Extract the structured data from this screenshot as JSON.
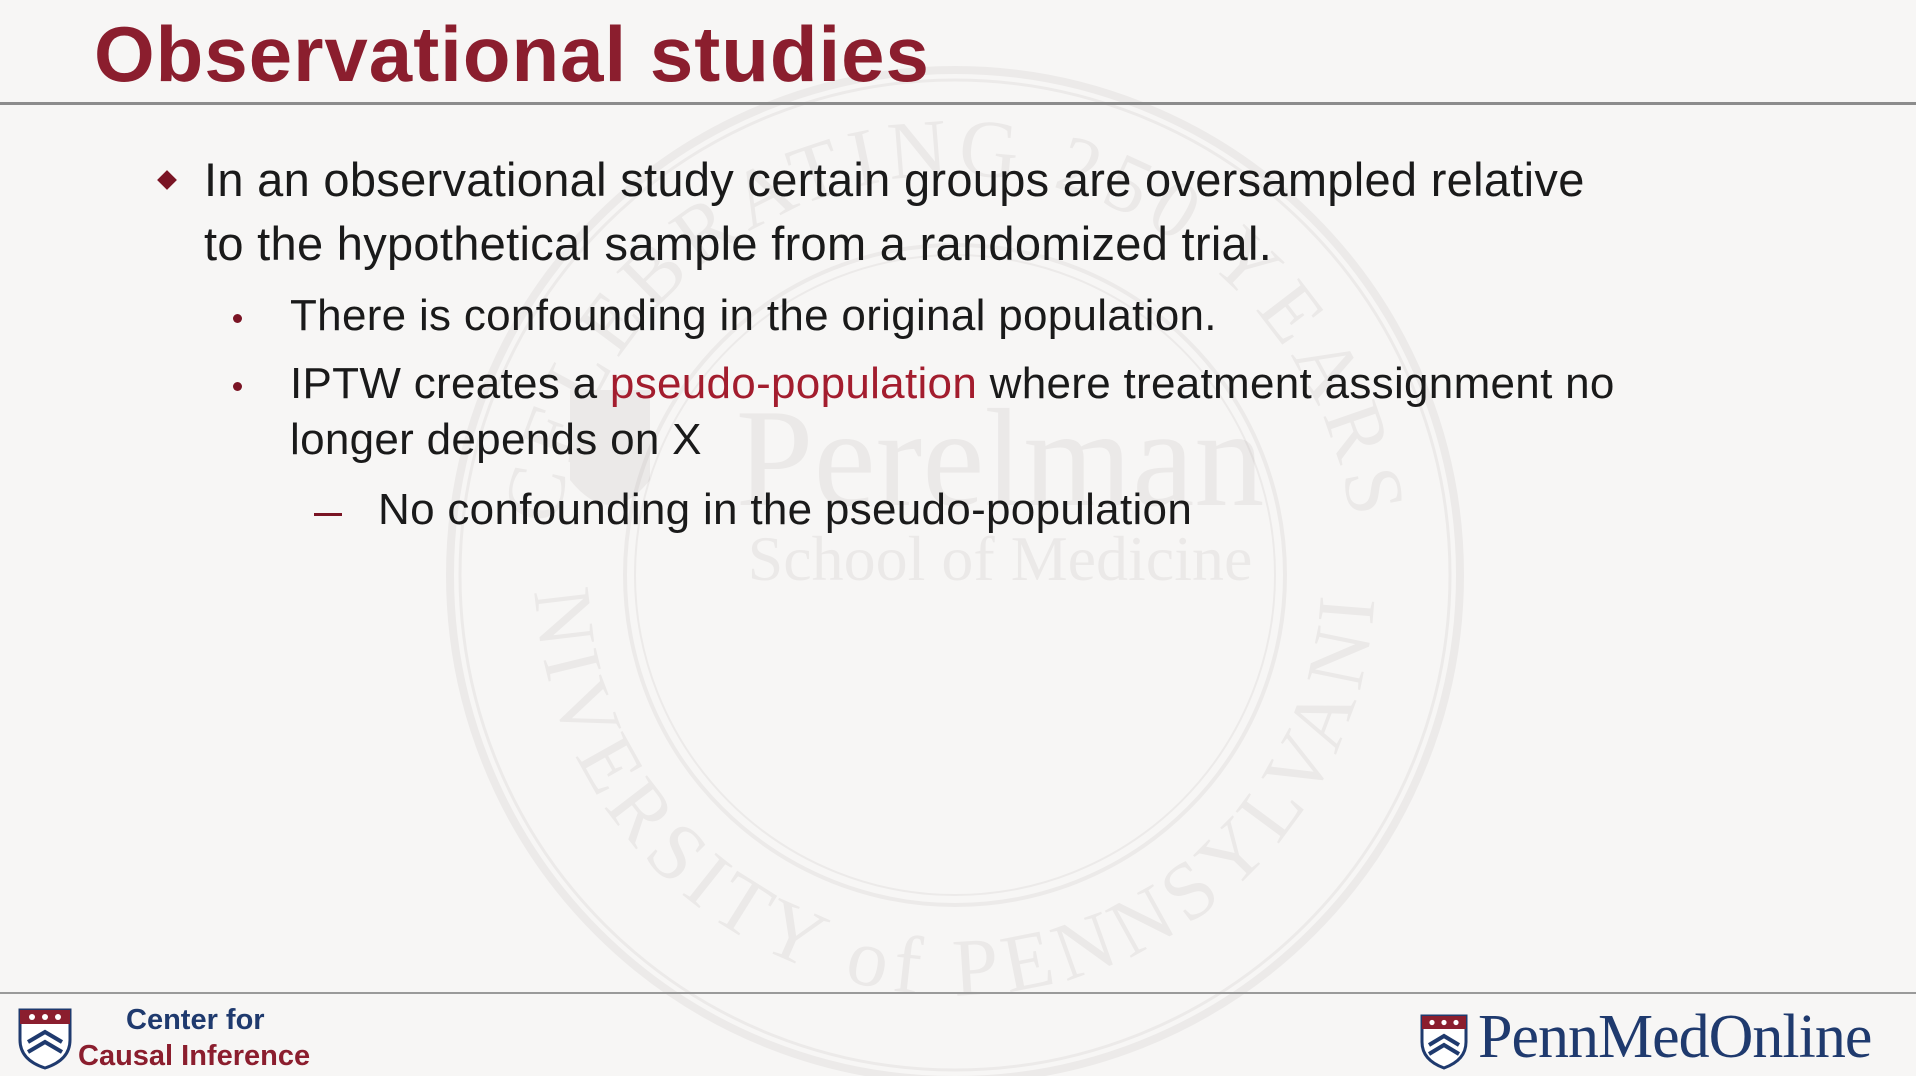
{
  "slide": {
    "title": "Observational studies",
    "bullet1": {
      "line1": "In an observational study certain groups are oversampled relative",
      "line2": "to the hypothetical sample from a randomized trial."
    },
    "sub1": "There is confounding in the original population.",
    "sub2": {
      "prefix": "IPTW creates a ",
      "highlight": "pseudo-population",
      "suffix": " where treatment assignment no",
      "line2": "longer depends on X"
    },
    "subsub1": "No confounding in the pseudo-population"
  },
  "footer": {
    "left_line1": "Center for",
    "left_line2": "Causal Inference",
    "right_logo": "PennMedOnline"
  },
  "watermark": {
    "top_arc": "CELEBRATING 250 YEARS",
    "center_line1": "Perelman",
    "center_line2": "School of Medicine",
    "bottom_arc": "UNIVERSITY of PENNSYLVANIA"
  },
  "colors": {
    "title": "#8b1e2e",
    "accent": "#a31d2e",
    "bullet": "#7a1424",
    "logo_blue": "#1f3a6e"
  }
}
